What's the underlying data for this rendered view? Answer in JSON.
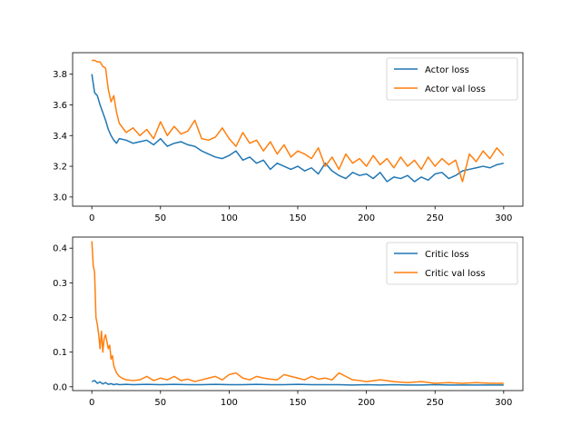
{
  "chart_data": [
    {
      "type": "line",
      "xlim": [
        -14,
        314
      ],
      "ylim": [
        2.94,
        3.94
      ],
      "xticks": [
        0,
        50,
        100,
        150,
        200,
        250,
        300
      ],
      "yticks": [
        3.0,
        3.2,
        3.4,
        3.6,
        3.8
      ],
      "ytick_labels": [
        "3.0",
        "3.2",
        "3.4",
        "3.6",
        "3.8"
      ],
      "grid": false,
      "legend": "top-right",
      "series": [
        {
          "name": "Actor loss",
          "color": "#1f77b4",
          "x": [
            0,
            2,
            4,
            6,
            8,
            10,
            12,
            14,
            16,
            18,
            20,
            25,
            30,
            35,
            40,
            45,
            50,
            55,
            60,
            65,
            70,
            75,
            80,
            85,
            90,
            95,
            100,
            105,
            110,
            115,
            120,
            125,
            130,
            135,
            140,
            145,
            150,
            155,
            160,
            165,
            170,
            175,
            180,
            185,
            190,
            195,
            200,
            205,
            210,
            215,
            220,
            225,
            230,
            235,
            240,
            245,
            250,
            255,
            260,
            265,
            270,
            275,
            280,
            285,
            290,
            295,
            300
          ],
          "values": [
            3.8,
            3.68,
            3.66,
            3.6,
            3.55,
            3.5,
            3.44,
            3.4,
            3.37,
            3.35,
            3.38,
            3.37,
            3.35,
            3.36,
            3.37,
            3.34,
            3.38,
            3.33,
            3.35,
            3.36,
            3.34,
            3.33,
            3.3,
            3.28,
            3.26,
            3.25,
            3.27,
            3.3,
            3.24,
            3.26,
            3.22,
            3.24,
            3.18,
            3.22,
            3.2,
            3.18,
            3.2,
            3.17,
            3.19,
            3.15,
            3.22,
            3.17,
            3.14,
            3.12,
            3.16,
            3.14,
            3.15,
            3.12,
            3.16,
            3.1,
            3.13,
            3.12,
            3.14,
            3.1,
            3.13,
            3.11,
            3.15,
            3.16,
            3.12,
            3.14,
            3.17,
            3.18,
            3.19,
            3.2,
            3.19,
            3.21,
            3.22
          ]
        },
        {
          "name": "Actor val loss",
          "color": "#ff7f0e",
          "x": [
            0,
            2,
            4,
            6,
            8,
            10,
            12,
            14,
            16,
            18,
            20,
            25,
            30,
            35,
            40,
            45,
            50,
            55,
            60,
            65,
            70,
            75,
            80,
            85,
            90,
            95,
            100,
            105,
            110,
            115,
            120,
            125,
            130,
            135,
            140,
            145,
            150,
            155,
            160,
            165,
            170,
            175,
            180,
            185,
            190,
            195,
            200,
            205,
            210,
            215,
            220,
            225,
            230,
            235,
            240,
            245,
            250,
            255,
            260,
            265,
            270,
            275,
            280,
            285,
            290,
            295,
            300
          ],
          "values": [
            3.89,
            3.89,
            3.88,
            3.88,
            3.85,
            3.84,
            3.7,
            3.62,
            3.66,
            3.55,
            3.48,
            3.42,
            3.45,
            3.4,
            3.44,
            3.38,
            3.49,
            3.4,
            3.46,
            3.41,
            3.43,
            3.5,
            3.38,
            3.37,
            3.39,
            3.45,
            3.38,
            3.33,
            3.42,
            3.35,
            3.37,
            3.3,
            3.36,
            3.28,
            3.34,
            3.26,
            3.3,
            3.28,
            3.25,
            3.32,
            3.2,
            3.26,
            3.18,
            3.28,
            3.22,
            3.25,
            3.2,
            3.27,
            3.21,
            3.25,
            3.19,
            3.26,
            3.2,
            3.24,
            3.18,
            3.26,
            3.2,
            3.25,
            3.21,
            3.24,
            3.1,
            3.28,
            3.23,
            3.3,
            3.25,
            3.32,
            3.27
          ]
        }
      ]
    },
    {
      "type": "line",
      "xlim": [
        -14,
        314
      ],
      "ylim": [
        -0.011,
        0.432
      ],
      "xticks": [
        0,
        50,
        100,
        150,
        200,
        250,
        300
      ],
      "yticks": [
        0.0,
        0.1,
        0.2,
        0.3,
        0.4
      ],
      "ytick_labels": [
        "0.0",
        "0.1",
        "0.2",
        "0.3",
        "0.4"
      ],
      "grid": false,
      "legend": "top-right",
      "series": [
        {
          "name": "Critic loss",
          "color": "#1f77b4",
          "x": [
            0,
            2,
            4,
            6,
            8,
            10,
            12,
            14,
            16,
            18,
            20,
            25,
            30,
            40,
            50,
            60,
            70,
            80,
            90,
            100,
            110,
            120,
            130,
            140,
            150,
            160,
            170,
            180,
            190,
            200,
            210,
            220,
            230,
            240,
            250,
            260,
            270,
            280,
            290,
            300
          ],
          "values": [
            0.015,
            0.018,
            0.01,
            0.014,
            0.008,
            0.012,
            0.007,
            0.009,
            0.006,
            0.008,
            0.006,
            0.007,
            0.006,
            0.007,
            0.006,
            0.007,
            0.006,
            0.006,
            0.007,
            0.006,
            0.006,
            0.007,
            0.006,
            0.006,
            0.007,
            0.006,
            0.006,
            0.006,
            0.005,
            0.006,
            0.005,
            0.006,
            0.005,
            0.005,
            0.006,
            0.005,
            0.005,
            0.005,
            0.005,
            0.005
          ]
        },
        {
          "name": "Critic val loss",
          "color": "#ff7f0e",
          "x": [
            0,
            1,
            2,
            3,
            4,
            5,
            6,
            7,
            8,
            9,
            10,
            11,
            12,
            13,
            14,
            15,
            16,
            17,
            18,
            20,
            22,
            25,
            30,
            35,
            40,
            45,
            50,
            55,
            60,
            65,
            70,
            75,
            80,
            85,
            90,
            95,
            100,
            105,
            110,
            115,
            120,
            125,
            130,
            135,
            140,
            145,
            150,
            155,
            160,
            165,
            170,
            175,
            180,
            185,
            190,
            195,
            200,
            210,
            220,
            230,
            240,
            250,
            260,
            270,
            280,
            290,
            300
          ],
          "values": [
            0.42,
            0.35,
            0.33,
            0.2,
            0.18,
            0.15,
            0.11,
            0.16,
            0.1,
            0.14,
            0.15,
            0.13,
            0.11,
            0.12,
            0.08,
            0.09,
            0.06,
            0.05,
            0.04,
            0.03,
            0.025,
            0.02,
            0.018,
            0.02,
            0.03,
            0.018,
            0.025,
            0.02,
            0.03,
            0.018,
            0.022,
            0.015,
            0.02,
            0.025,
            0.03,
            0.02,
            0.035,
            0.04,
            0.025,
            0.02,
            0.03,
            0.025,
            0.022,
            0.02,
            0.035,
            0.03,
            0.025,
            0.02,
            0.03,
            0.022,
            0.025,
            0.02,
            0.04,
            0.03,
            0.02,
            0.018,
            0.015,
            0.02,
            0.015,
            0.012,
            0.015,
            0.01,
            0.012,
            0.01,
            0.012,
            0.01,
            0.01
          ]
        }
      ]
    }
  ]
}
